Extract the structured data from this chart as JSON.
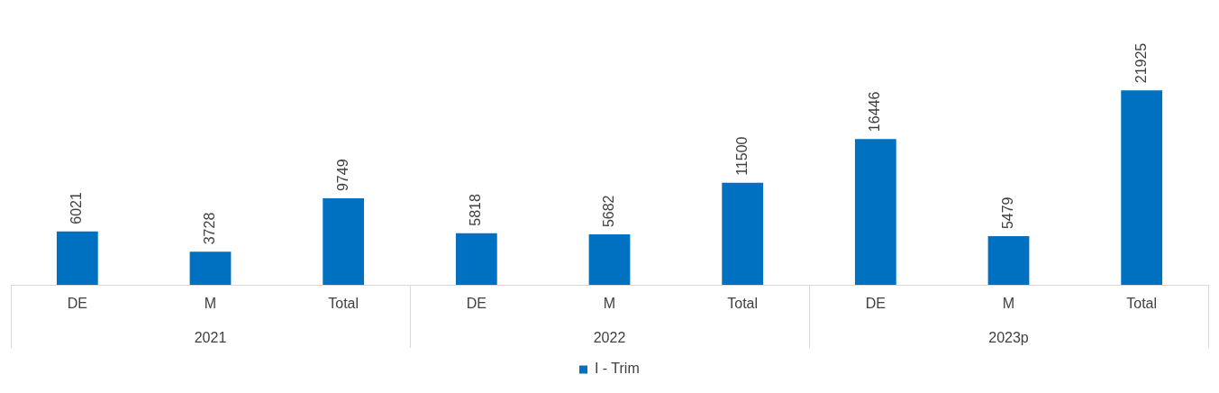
{
  "chart_data": {
    "type": "bar",
    "categories": [
      "DE",
      "M",
      "Total",
      "DE",
      "M",
      "Total",
      "DE",
      "M",
      "Total"
    ],
    "series": [
      {
        "name": "I - Trim",
        "color": "#0070c0",
        "values": [
          6021,
          3728,
          9749,
          5818,
          5682,
          11500,
          16446,
          5479,
          21925
        ]
      }
    ],
    "annotations": [
      "2021",
      "2022",
      "2023p"
    ],
    "data_labels": true,
    "legend": "bottom",
    "grid": false
  }
}
